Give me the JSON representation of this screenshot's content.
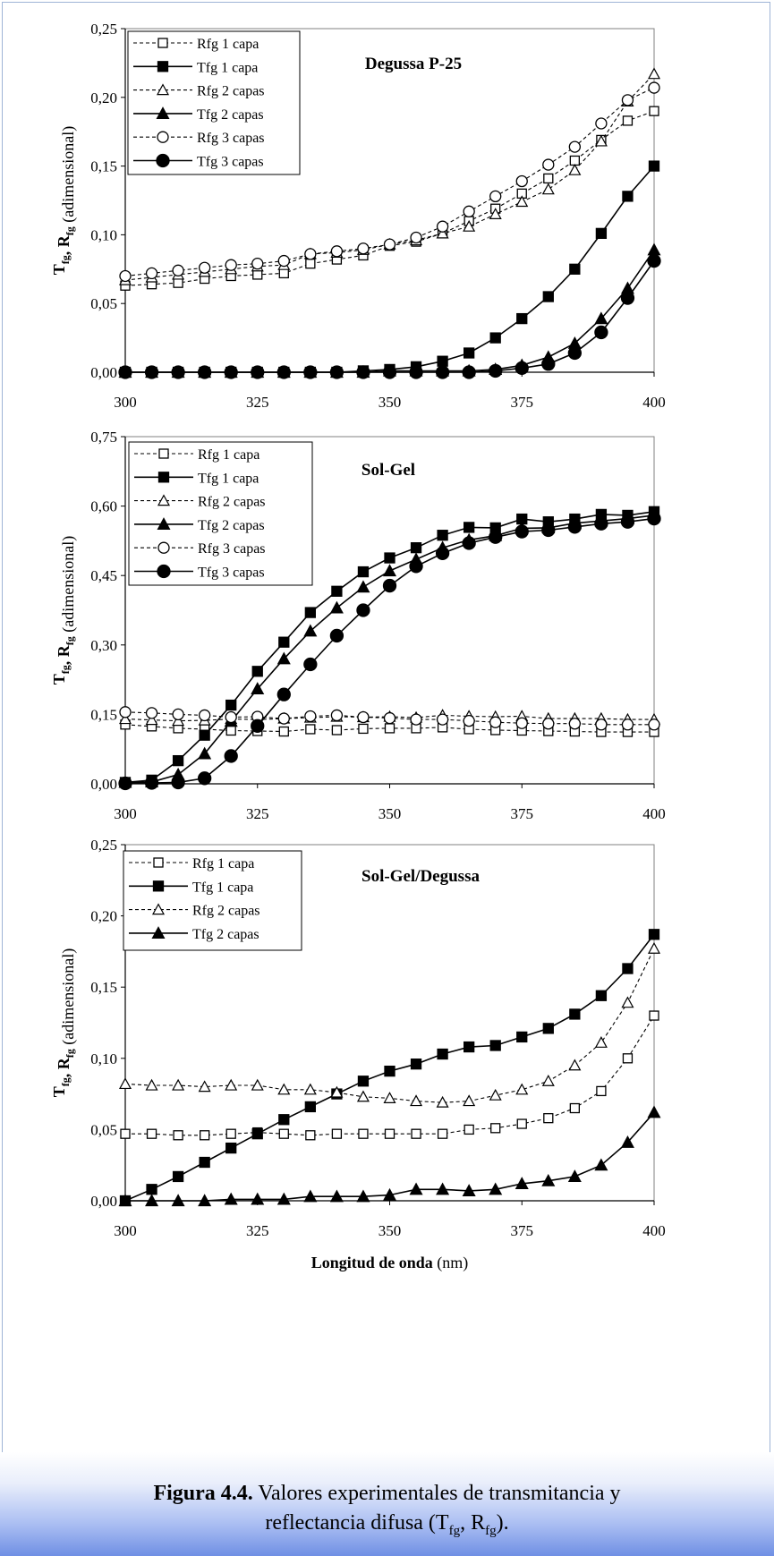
{
  "figure": {
    "caption_label": "Figura 4.4.",
    "caption_line1": " Valores experimentales de transmitancia y",
    "caption_line2_pre": "reflectancia difusa (T",
    "caption_sub1": "fg",
    "caption_mid": ", R",
    "caption_sub2": "fg",
    "caption_post": ")."
  },
  "colors": {
    "series": "#000000",
    "frame": "#9fb4d6",
    "caption_gradient_end": "#6f8fe4"
  },
  "chart_data": [
    {
      "type": "line",
      "title": "Degussa P-25",
      "ylabel_main": "T",
      "ylabel_sub1": "fg",
      "ylabel_mid": ", R",
      "ylabel_sub2": "fg",
      "ylabel_rest": " (adimensional)",
      "xlabel": "",
      "xlim": [
        300,
        400
      ],
      "ylim": [
        0,
        0.25
      ],
      "xticks": [
        300,
        325,
        350,
        375,
        400
      ],
      "xtick_labels": [
        "300",
        "325",
        "350",
        "375",
        "400"
      ],
      "yticks": [
        0,
        0.05,
        0.1,
        0.15,
        0.2,
        0.25
      ],
      "ytick_labels": [
        "0,00",
        "0,05",
        "0,10",
        "0,15",
        "0,20",
        "0,25"
      ],
      "legend_position": "top-left",
      "x": [
        300,
        305,
        310,
        315,
        320,
        325,
        330,
        335,
        340,
        345,
        350,
        355,
        360,
        365,
        370,
        375,
        380,
        385,
        390,
        395,
        400
      ],
      "series": [
        {
          "name": "Rfg 1 capa",
          "marker": "square-open",
          "dashed": true,
          "values": [
            0.063,
            0.064,
            0.065,
            0.068,
            0.07,
            0.071,
            0.072,
            0.079,
            0.082,
            0.085,
            0.092,
            0.095,
            0.101,
            0.11,
            0.119,
            0.13,
            0.141,
            0.154,
            0.169,
            0.183,
            0.19
          ]
        },
        {
          "name": "Tfg 1 capa",
          "marker": "square-filled",
          "dashed": false,
          "values": [
            0.0,
            0.0,
            0.0,
            0.0,
            0.0,
            0.0,
            0.0,
            0.0,
            0.0,
            0.001,
            0.002,
            0.004,
            0.008,
            0.014,
            0.025,
            0.039,
            0.055,
            0.075,
            0.101,
            0.128,
            0.15
          ]
        },
        {
          "name": "Rfg 2 capas",
          "marker": "triangle-open",
          "dashed": true,
          "values": [
            0.067,
            0.069,
            0.071,
            0.073,
            0.075,
            0.077,
            0.078,
            0.086,
            0.087,
            0.089,
            0.093,
            0.096,
            0.101,
            0.106,
            0.115,
            0.124,
            0.133,
            0.147,
            0.168,
            0.197,
            0.217
          ]
        },
        {
          "name": "Tfg 2 capas",
          "marker": "triangle-filled",
          "dashed": false,
          "values": [
            0.0,
            0.0,
            0.0,
            0.0,
            0.0,
            0.0,
            0.0,
            0.0,
            0.0,
            0.0,
            0.001,
            0.001,
            0.001,
            0.001,
            0.002,
            0.005,
            0.011,
            0.021,
            0.039,
            0.061,
            0.089
          ]
        },
        {
          "name": "Rfg 3 capas",
          "marker": "circle-open",
          "dashed": true,
          "values": [
            0.07,
            0.072,
            0.074,
            0.076,
            0.078,
            0.079,
            0.081,
            0.086,
            0.088,
            0.09,
            0.093,
            0.098,
            0.106,
            0.117,
            0.128,
            0.139,
            0.151,
            0.164,
            0.181,
            0.198,
            0.207
          ]
        },
        {
          "name": "Tfg 3 capas",
          "marker": "circle-filled",
          "dashed": false,
          "values": [
            0.0,
            0.0,
            0.0,
            0.0,
            0.0,
            0.0,
            0.0,
            0.0,
            0.0,
            0.0,
            0.0,
            0.0,
            0.0,
            0.0,
            0.001,
            0.003,
            0.006,
            0.014,
            0.029,
            0.054,
            0.081
          ]
        }
      ]
    },
    {
      "type": "line",
      "title": "Sol-Gel",
      "ylabel_main": "T",
      "ylabel_sub1": "fg",
      "ylabel_mid": ", R",
      "ylabel_sub2": "fg",
      "ylabel_rest": " (adimensional)",
      "xlabel": "",
      "xlim": [
        300,
        400
      ],
      "ylim": [
        0,
        0.75
      ],
      "xticks": [
        300,
        325,
        350,
        375,
        400
      ],
      "xtick_labels": [
        "300",
        "325",
        "350",
        "375",
        "400"
      ],
      "yticks": [
        0,
        0.15,
        0.3,
        0.45,
        0.6,
        0.75
      ],
      "ytick_labels": [
        "0,00",
        "0,15",
        "0,30",
        "0,45",
        "0,60",
        "0,75"
      ],
      "legend_position": "top-left",
      "x": [
        300,
        305,
        310,
        315,
        320,
        325,
        330,
        335,
        340,
        345,
        350,
        355,
        360,
        365,
        370,
        375,
        380,
        385,
        390,
        395,
        400
      ],
      "series": [
        {
          "name": "Rfg 1 capa",
          "marker": "square-open",
          "dashed": true,
          "values": [
            0.128,
            0.124,
            0.12,
            0.118,
            0.115,
            0.114,
            0.113,
            0.118,
            0.116,
            0.119,
            0.12,
            0.12,
            0.122,
            0.118,
            0.116,
            0.115,
            0.114,
            0.113,
            0.112,
            0.112,
            0.112
          ]
        },
        {
          "name": "Tfg 1 capa",
          "marker": "square-filled",
          "dashed": false,
          "values": [
            0.003,
            0.008,
            0.05,
            0.105,
            0.17,
            0.243,
            0.306,
            0.37,
            0.416,
            0.458,
            0.488,
            0.51,
            0.537,
            0.554,
            0.553,
            0.572,
            0.566,
            0.572,
            0.582,
            0.58,
            0.588
          ]
        },
        {
          "name": "Rfg 2 capas",
          "marker": "triangle-open",
          "dashed": true,
          "values": [
            0.14,
            0.138,
            0.136,
            0.137,
            0.14,
            0.139,
            0.141,
            0.143,
            0.145,
            0.144,
            0.145,
            0.143,
            0.148,
            0.146,
            0.145,
            0.146,
            0.141,
            0.141,
            0.141,
            0.139,
            0.139
          ]
        },
        {
          "name": "Tfg 2 capas",
          "marker": "triangle-filled",
          "dashed": false,
          "values": [
            0.003,
            0.004,
            0.02,
            0.065,
            0.135,
            0.205,
            0.27,
            0.33,
            0.38,
            0.425,
            0.46,
            0.485,
            0.51,
            0.527,
            0.536,
            0.552,
            0.553,
            0.563,
            0.568,
            0.573,
            0.58
          ]
        },
        {
          "name": "Rfg 3 capas",
          "marker": "circle-open",
          "dashed": true,
          "values": [
            0.155,
            0.153,
            0.15,
            0.148,
            0.144,
            0.145,
            0.141,
            0.146,
            0.148,
            0.144,
            0.142,
            0.139,
            0.139,
            0.136,
            0.133,
            0.131,
            0.13,
            0.13,
            0.128,
            0.128,
            0.128
          ]
        },
        {
          "name": "Tfg 3 capas",
          "marker": "circle-filled",
          "dashed": false,
          "values": [
            0.001,
            0.002,
            0.003,
            0.012,
            0.06,
            0.125,
            0.193,
            0.258,
            0.32,
            0.375,
            0.428,
            0.47,
            0.498,
            0.52,
            0.533,
            0.545,
            0.548,
            0.555,
            0.562,
            0.566,
            0.573
          ]
        }
      ]
    },
    {
      "type": "line",
      "title": "Sol-Gel/Degussa",
      "ylabel_main": "T",
      "ylabel_sub1": "fg",
      "ylabel_mid": ", R",
      "ylabel_sub2": "fg",
      "ylabel_rest": " (adimensional)",
      "xlabel": "Longitud de onda",
      "xlabel_unit": " (nm)",
      "xlim": [
        300,
        400
      ],
      "ylim": [
        0,
        0.25
      ],
      "xticks": [
        300,
        325,
        350,
        375,
        400
      ],
      "xtick_labels": [
        "300",
        "325",
        "350",
        "375",
        "400"
      ],
      "yticks": [
        0,
        0.05,
        0.1,
        0.15,
        0.2,
        0.25
      ],
      "ytick_labels": [
        "0,00",
        "0,05",
        "0,10",
        "0,15",
        "0,20",
        "0,25"
      ],
      "legend_position": "top-left",
      "x": [
        300,
        305,
        310,
        315,
        320,
        325,
        330,
        335,
        340,
        345,
        350,
        355,
        360,
        365,
        370,
        375,
        380,
        385,
        390,
        395,
        400
      ],
      "series": [
        {
          "name": "Rfg 1 capa",
          "marker": "square-open",
          "dashed": true,
          "values": [
            0.047,
            0.047,
            0.046,
            0.046,
            0.047,
            0.048,
            0.047,
            0.046,
            0.047,
            0.047,
            0.047,
            0.047,
            0.047,
            0.05,
            0.051,
            0.054,
            0.058,
            0.065,
            0.077,
            0.1,
            0.13
          ]
        },
        {
          "name": "Tfg 1 capa",
          "marker": "square-filled",
          "dashed": false,
          "values": [
            0.0,
            0.008,
            0.017,
            0.027,
            0.037,
            0.047,
            0.057,
            0.066,
            0.075,
            0.084,
            0.091,
            0.096,
            0.103,
            0.108,
            0.109,
            0.115,
            0.121,
            0.131,
            0.144,
            0.163,
            0.187
          ]
        },
        {
          "name": "Rfg 2 capas",
          "marker": "triangle-open",
          "dashed": true,
          "values": [
            0.082,
            0.081,
            0.081,
            0.08,
            0.081,
            0.081,
            0.078,
            0.078,
            0.076,
            0.073,
            0.072,
            0.07,
            0.069,
            0.07,
            0.074,
            0.078,
            0.084,
            0.095,
            0.111,
            0.139,
            0.177
          ]
        },
        {
          "name": "Tfg 2 capas",
          "marker": "triangle-filled",
          "dashed": false,
          "values": [
            0.0,
            0.0,
            0.0,
            0.0,
            0.001,
            0.001,
            0.001,
            0.003,
            0.003,
            0.003,
            0.004,
            0.008,
            0.008,
            0.007,
            0.008,
            0.012,
            0.014,
            0.017,
            0.025,
            0.041,
            0.062
          ]
        }
      ]
    }
  ]
}
